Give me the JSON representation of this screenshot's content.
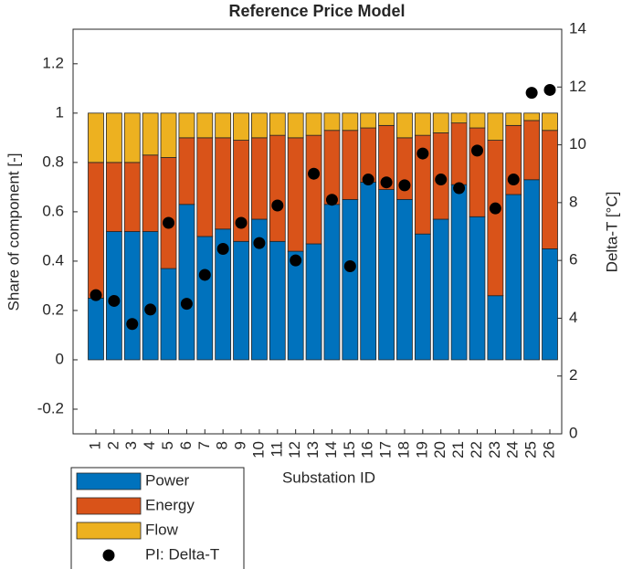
{
  "chart_data": {
    "type": "bar",
    "stacked": true,
    "title": "Reference Price Model",
    "xlabel": "Substation ID",
    "ylabel": "Share of component [-]",
    "y2label": "Delta-T [°C]",
    "categories": [
      "1",
      "2",
      "3",
      "4",
      "5",
      "6",
      "7",
      "8",
      "9",
      "10",
      "11",
      "12",
      "13",
      "14",
      "15",
      "16",
      "17",
      "18",
      "19",
      "20",
      "21",
      "22",
      "23",
      "24",
      "25",
      "26"
    ],
    "series": [
      {
        "name": "Power",
        "color": "#0072bd",
        "values": [
          0.25,
          0.52,
          0.52,
          0.52,
          0.37,
          0.63,
          0.5,
          0.53,
          0.48,
          0.57,
          0.48,
          0.44,
          0.47,
          0.63,
          0.65,
          0.72,
          0.69,
          0.65,
          0.51,
          0.57,
          0.71,
          0.58,
          0.26,
          0.67,
          0.73,
          0.45
        ]
      },
      {
        "name": "Energy",
        "color": "#d95319",
        "values": [
          0.55,
          0.28,
          0.28,
          0.31,
          0.45,
          0.27,
          0.4,
          0.37,
          0.41,
          0.33,
          0.43,
          0.46,
          0.44,
          0.3,
          0.28,
          0.22,
          0.26,
          0.25,
          0.4,
          0.35,
          0.25,
          0.36,
          0.63,
          0.28,
          0.24,
          0.48
        ]
      },
      {
        "name": "Flow",
        "color": "#edb120",
        "values": [
          0.2,
          0.2,
          0.2,
          0.17,
          0.18,
          0.1,
          0.1,
          0.1,
          0.11,
          0.1,
          0.09,
          0.1,
          0.09,
          0.07,
          0.07,
          0.06,
          0.05,
          0.1,
          0.09,
          0.08,
          0.04,
          0.06,
          0.11,
          0.05,
          0.03,
          0.07
        ]
      },
      {
        "name": "PI: Delta-T",
        "type": "scatter",
        "axis": "y2",
        "color": "#000000",
        "values": [
          4.8,
          4.6,
          3.8,
          4.3,
          7.3,
          4.5,
          5.5,
          6.4,
          7.3,
          6.6,
          7.9,
          6.0,
          9.0,
          8.1,
          5.8,
          8.8,
          8.7,
          8.6,
          9.7,
          8.8,
          8.5,
          9.8,
          7.8,
          8.8,
          11.8,
          11.9
        ]
      }
    ],
    "ylim": [
      -0.3,
      1.34
    ],
    "yticks": [
      -0.2,
      0,
      0.2,
      0.4,
      0.6,
      0.8,
      1,
      1.2
    ],
    "y2lim": [
      0,
      14
    ],
    "y2ticks": [
      0,
      2,
      4,
      6,
      8,
      10,
      12,
      14
    ],
    "legend": "outside-bottom-left"
  }
}
